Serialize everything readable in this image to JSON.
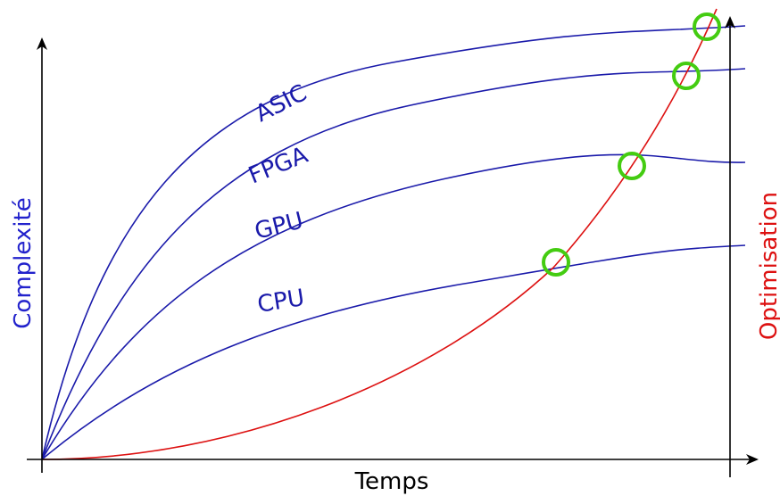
{
  "axes": {
    "x_title": "Temps",
    "y_left_title": "Complexité",
    "y_right_title": "Optimisation"
  },
  "curves": [
    {
      "key": "asic",
      "label": "ASIC"
    },
    {
      "key": "fpga",
      "label": "FPGA"
    },
    {
      "key": "gpu",
      "label": "GPU"
    },
    {
      "key": "cpu",
      "label": "CPU"
    }
  ],
  "colors": {
    "hardware_curves": "#1a1aaa",
    "optimisation_curve": "#dd1111",
    "intersection_markers": "#44cc11",
    "left_axis_title": "#2222cc",
    "right_axis_title": "#dd1111",
    "axes": "#000000"
  }
}
